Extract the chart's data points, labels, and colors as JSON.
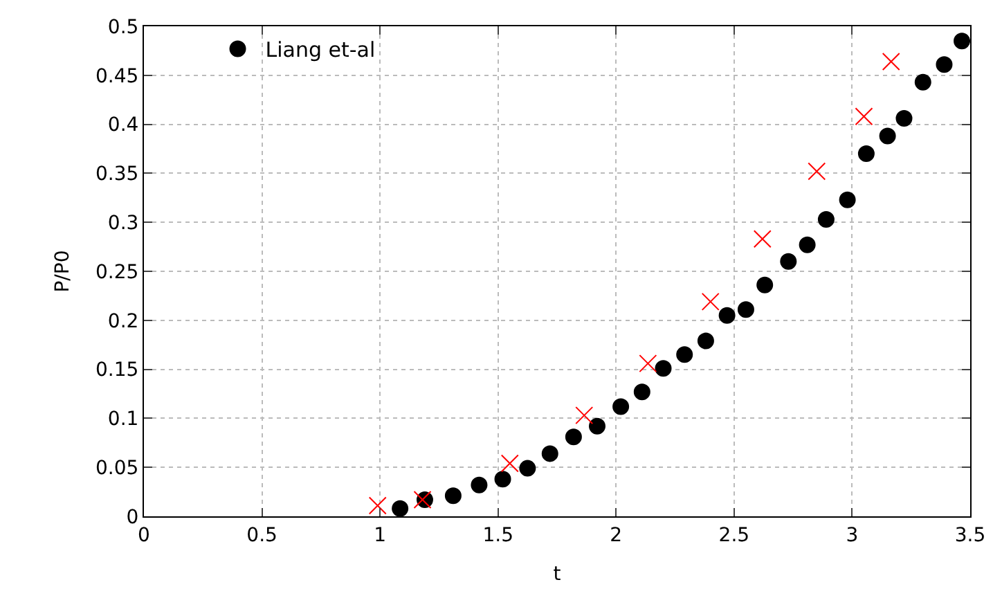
{
  "chart_data": {
    "type": "scatter",
    "xlabel": "t",
    "ylabel": "P/P0",
    "xlim": [
      0,
      3.5
    ],
    "xticks": [
      0,
      0.5,
      1,
      1.5,
      2,
      2.5,
      3,
      3.5
    ],
    "ylim": [
      0,
      0.5
    ],
    "yticks": [
      0,
      0.05,
      0.1,
      0.15,
      0.2,
      0.25,
      0.3,
      0.35,
      0.4,
      0.45,
      0.5
    ],
    "grid": true,
    "legend": "top left",
    "series": [
      {
        "name": "Liang et-al",
        "color": "#000000",
        "marker": "circle",
        "x": [
          1.085,
          1.19,
          1.31,
          1.42,
          1.52,
          1.625,
          1.72,
          1.82,
          1.92,
          2.02,
          2.11,
          2.2,
          2.29,
          2.38,
          2.47,
          2.55,
          2.63,
          2.73,
          2.81,
          2.89,
          2.98,
          3.06,
          3.15,
          3.22,
          3.3,
          3.39,
          3.465
        ],
        "values": [
          0.008,
          0.017,
          0.021,
          0.032,
          0.038,
          0.049,
          0.064,
          0.081,
          0.092,
          0.112,
          0.127,
          0.151,
          0.165,
          0.179,
          0.205,
          0.211,
          0.236,
          0.26,
          0.277,
          0.303,
          0.323,
          0.37,
          0.388,
          0.406,
          0.443,
          0.461,
          0.485
        ]
      },
      {
        "color": "#ff0000",
        "marker": "cross",
        "x": [
          0.99,
          1.18,
          1.55,
          1.865,
          2.135,
          2.4,
          2.62,
          2.85,
          3.05,
          3.165
        ],
        "values": [
          0.011,
          0.017,
          0.054,
          0.103,
          0.156,
          0.219,
          0.283,
          0.352,
          0.408,
          0.464
        ]
      }
    ]
  }
}
